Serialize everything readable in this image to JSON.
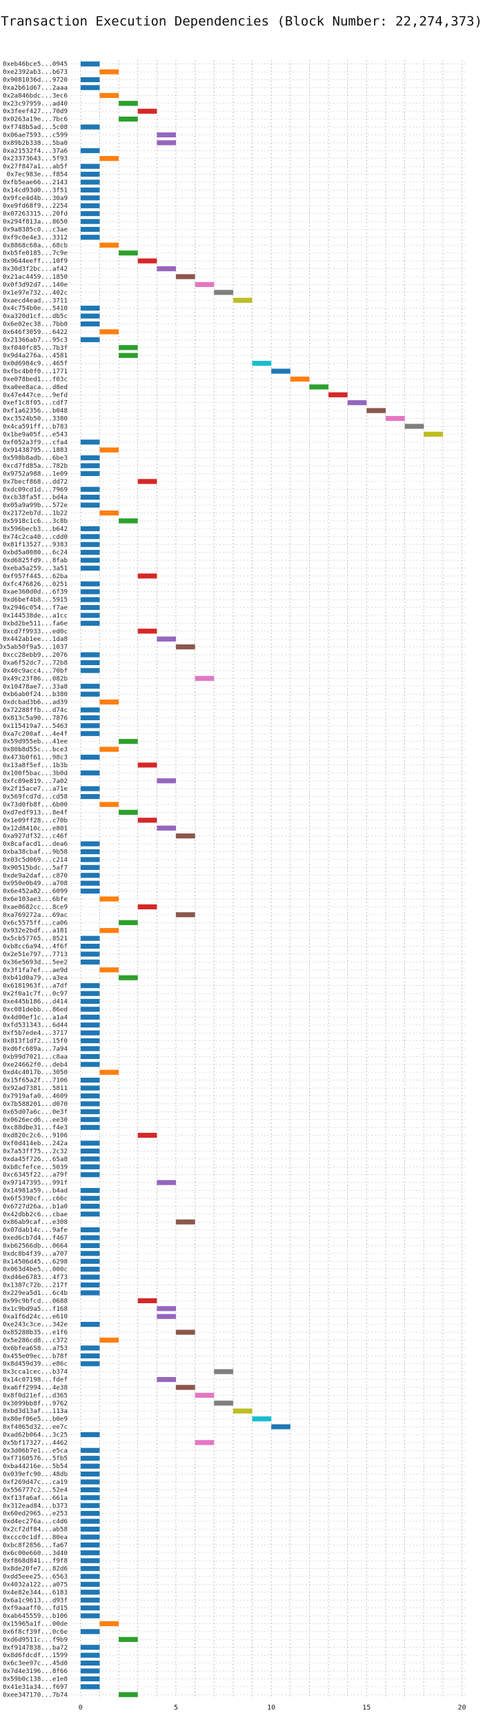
{
  "title": "Transaction Execution Dependencies (Block Number: 22,274,373)",
  "chart_data": {
    "type": "gantt",
    "title": "Transaction Execution Dependencies (Block Number: 22,274,373)",
    "xlim": [
      -0.5,
      20.2
    ],
    "xticks": [
      0,
      5,
      10,
      15,
      20
    ],
    "grid": true,
    "palette": [
      "#1f77b4",
      "#ff7f0e",
      "#2ca02c",
      "#d62728",
      "#9467bd",
      "#8c564b",
      "#e377c2",
      "#7f7f7f",
      "#bcbd22",
      "#17becf"
    ],
    "tasks": [
      {
        "label": "0xeb46bce5...0945",
        "start": 0
      },
      {
        "label": "0xe2392ab3...b673",
        "start": 1
      },
      {
        "label": "0x9081036d...9720",
        "start": 0
      },
      {
        "label": "0xa2b61d67...2aaa",
        "start": 0
      },
      {
        "label": "0x2a846bdc...3ec6",
        "start": 1
      },
      {
        "label": "0x23c97959...ad40",
        "start": 2
      },
      {
        "label": "0x3feef427...70d9",
        "start": 3
      },
      {
        "label": "0x0263a19e...7bc6",
        "start": 2
      },
      {
        "label": "0xf748b5ad...5c08",
        "start": 0
      },
      {
        "label": "0x06ae7593...c599",
        "start": 4
      },
      {
        "label": "0x89b2b338...5ba0",
        "start": 4
      },
      {
        "label": "0xa21532f4...37a6",
        "start": 0
      },
      {
        "label": "0x23373643...5f93",
        "start": 1
      },
      {
        "label": "0x27f847a1...ab5f",
        "start": 0
      },
      {
        "label": "0x7ec983e...f854",
        "start": 0
      },
      {
        "label": "0xfb5eae66...2143",
        "start": 0
      },
      {
        "label": "0x14cd93d0...3f51",
        "start": 0
      },
      {
        "label": "0x9fce4d4b...30a9",
        "start": 0
      },
      {
        "label": "0xe9fd68f9...2254",
        "start": 0
      },
      {
        "label": "0x07263315...20fd",
        "start": 0
      },
      {
        "label": "0x294f813a...8650",
        "start": 0
      },
      {
        "label": "0x9a8385c0...c3ae",
        "start": 0
      },
      {
        "label": "0xf9c0e4e3...3312",
        "start": 0
      },
      {
        "label": "0x8868c68a...68cb",
        "start": 1
      },
      {
        "label": "0xb5fe0185...7c9e",
        "start": 2
      },
      {
        "label": "0x9644eeff...10f9",
        "start": 3
      },
      {
        "label": "0x30d3f2bc...af42",
        "start": 4
      },
      {
        "label": "0x21ac4459...1850",
        "start": 5
      },
      {
        "label": "0x0f3d92d7...140e",
        "start": 6
      },
      {
        "label": "0x1e97e732...402c",
        "start": 7
      },
      {
        "label": "0xaecd4ead...3711",
        "start": 8
      },
      {
        "label": "0x4c754b0e...5410",
        "start": 0
      },
      {
        "label": "0xa320d1cf...db5c",
        "start": 0
      },
      {
        "label": "0x6e02ec38...7bb0",
        "start": 0
      },
      {
        "label": "0x646f3059...6422",
        "start": 1
      },
      {
        "label": "0x21366ab7...95c3",
        "start": 0
      },
      {
        "label": "0xf040fc85...7b3f",
        "start": 2
      },
      {
        "label": "0x9d4a276a...4581",
        "start": 2
      },
      {
        "label": "0x0d6984c9...465f",
        "start": 9
      },
      {
        "label": "0xfbc4b0f0...1771",
        "start": 10
      },
      {
        "label": "0xe078bed1...f03c",
        "start": 11
      },
      {
        "label": "0xa0ee8aca...d8ed",
        "start": 12
      },
      {
        "label": "0x47e447ce...9efd",
        "start": 13
      },
      {
        "label": "0xef1c8f05...cdf7",
        "start": 14
      },
      {
        "label": "0xf1a62356...b048",
        "start": 15
      },
      {
        "label": "0xc3524b50...3380",
        "start": 16
      },
      {
        "label": "0x4ca591ff...b783",
        "start": 17
      },
      {
        "label": "0x1be9a05f...e543",
        "start": 18
      },
      {
        "label": "0xf052a3f9...cfa4",
        "start": 0
      },
      {
        "label": "0x91438795...1883",
        "start": 1
      },
      {
        "label": "0x598b8adb...6be3",
        "start": 0
      },
      {
        "label": "0xcd7fd85a...782b",
        "start": 0
      },
      {
        "label": "0x9752a988...1e09",
        "start": 0
      },
      {
        "label": "0x7becf868...dd72",
        "start": 3
      },
      {
        "label": "0xdc09cd1d...7969",
        "start": 0
      },
      {
        "label": "0xcb38fa5f...bd4a",
        "start": 0
      },
      {
        "label": "0x05a9a99b...572e",
        "start": 0
      },
      {
        "label": "0x2172eb7d...1b22",
        "start": 1
      },
      {
        "label": "0x5918c1c6...3c8b",
        "start": 2
      },
      {
        "label": "0x596becb3...b642",
        "start": 0
      },
      {
        "label": "0x74c2ca40...cdd0",
        "start": 0
      },
      {
        "label": "0x81f13527...9383",
        "start": 0
      },
      {
        "label": "0xbd5a0080...6c24",
        "start": 0
      },
      {
        "label": "0xd6825fd9...8fab",
        "start": 0
      },
      {
        "label": "0xeba5a259...3a51",
        "start": 0
      },
      {
        "label": "0xf957f445...62ba",
        "start": 3
      },
      {
        "label": "0xfc476826...0251",
        "start": 0
      },
      {
        "label": "0xae360d0d...6f39",
        "start": 0
      },
      {
        "label": "0xd6bef4b8...5915",
        "start": 0
      },
      {
        "label": "0x2946c054...f7ae",
        "start": 0
      },
      {
        "label": "0x144538de...a1cc",
        "start": 0
      },
      {
        "label": "0xbd2be511...fa6e",
        "start": 0
      },
      {
        "label": "0xcd7f9933...ed0c",
        "start": 3
      },
      {
        "label": "0x442ab1ee...1da8",
        "start": 4
      },
      {
        "label": "0x5ab50f9a5...1037",
        "start": 5
      },
      {
        "label": "0xcc28ebb9...2076",
        "start": 0
      },
      {
        "label": "0xa6f52dc7...72b8",
        "start": 0
      },
      {
        "label": "0x40c9acc4...70bf",
        "start": 0
      },
      {
        "label": "0x49c23f86...082b",
        "start": 6
      },
      {
        "label": "0x10478ae7...33a8",
        "start": 0
      },
      {
        "label": "0xb6ab0f24...b380",
        "start": 0
      },
      {
        "label": "0xdcbad3b6...ad39",
        "start": 1
      },
      {
        "label": "0x72288ffb...d74c",
        "start": 0
      },
      {
        "label": "0x813c5a90...7876",
        "start": 0
      },
      {
        "label": "0x115419a7...5463",
        "start": 0
      },
      {
        "label": "0xa7c200af...4e4f",
        "start": 0
      },
      {
        "label": "0x59d955eb...41ee",
        "start": 2
      },
      {
        "label": "0x80b8d55c...bce3",
        "start": 1
      },
      {
        "label": "0x473b0f61...98c3",
        "start": 0
      },
      {
        "label": "0x13a8f5ef...1b3b",
        "start": 3
      },
      {
        "label": "0x100f5bac...3b0d",
        "start": 0
      },
      {
        "label": "0xfc89e819...7a02",
        "start": 4
      },
      {
        "label": "0x2f15ace7...a71e",
        "start": 0
      },
      {
        "label": "0x569fcd7d...cd58",
        "start": 0
      },
      {
        "label": "0x73d0fb8f...6b00",
        "start": 1
      },
      {
        "label": "0xd7edf913...8e4f",
        "start": 2
      },
      {
        "label": "0x1e09ff28...c70b",
        "start": 3
      },
      {
        "label": "0x12d8410c...e801",
        "start": 4
      },
      {
        "label": "0xa927df32...c46f",
        "start": 5
      },
      {
        "label": "0x8cafacd1...dea6",
        "start": 0
      },
      {
        "label": "0xba38cbaf...9b58",
        "start": 0
      },
      {
        "label": "0x03c5d069...c214",
        "start": 0
      },
      {
        "label": "0x90515bdc...5af7",
        "start": 0
      },
      {
        "label": "0xde9a2daf...c870",
        "start": 0
      },
      {
        "label": "0x950e0b49...a708",
        "start": 0
      },
      {
        "label": "0x6e452a82...6099",
        "start": 0
      },
      {
        "label": "0x6e103ae3...6bfe",
        "start": 1
      },
      {
        "label": "0xae0682cc...8ce9",
        "start": 3
      },
      {
        "label": "0xa769272a...69ac",
        "start": 5
      },
      {
        "label": "0x6c5575ff...ca06",
        "start": 2
      },
      {
        "label": "0x932e2bdf...a181",
        "start": 1
      },
      {
        "label": "0x5cb57765...8521",
        "start": 0
      },
      {
        "label": "0xb8cc6a94...4f6f",
        "start": 0
      },
      {
        "label": "0x2e51e797...7713",
        "start": 0
      },
      {
        "label": "0x36e5693d...5ee2",
        "start": 0
      },
      {
        "label": "0x3f1fa7ef...ae9d",
        "start": 1
      },
      {
        "label": "0xb41d0a79...a3ea",
        "start": 2
      },
      {
        "label": "0x6181963f...a7df",
        "start": 0
      },
      {
        "label": "0x2f0a1c7f...0c97",
        "start": 0
      },
      {
        "label": "0xe445b186...d414",
        "start": 0
      },
      {
        "label": "0xc081debb...86ed",
        "start": 0
      },
      {
        "label": "0x4d00ef1c...a1a4",
        "start": 0
      },
      {
        "label": "0xfd531343...6d44",
        "start": 0
      },
      {
        "label": "0xf5b7ede4...3717",
        "start": 0
      },
      {
        "label": "0x813f1df2...15f0",
        "start": 0
      },
      {
        "label": "0xd6fc689a...7a94",
        "start": 0
      },
      {
        "label": "0xb99d7021...c8aa",
        "start": 0
      },
      {
        "label": "0xe24662f0...deb4",
        "start": 0
      },
      {
        "label": "0xd4c4017b...3050",
        "start": 1
      },
      {
        "label": "0x15f65a2f...7106",
        "start": 0
      },
      {
        "label": "0x92ad7381...5811",
        "start": 0
      },
      {
        "label": "0x7919afa0...4609",
        "start": 0
      },
      {
        "label": "0x7b588201...d070",
        "start": 0
      },
      {
        "label": "0x65d07a6c...0e3f",
        "start": 0
      },
      {
        "label": "0x0626ecd6...ee30",
        "start": 0
      },
      {
        "label": "0xc88dbe31...f4e3",
        "start": 0
      },
      {
        "label": "0xd820c2c6...9106",
        "start": 3
      },
      {
        "label": "0xf0d414eb...242a",
        "start": 0
      },
      {
        "label": "0x7a53ff75...2c32",
        "start": 0
      },
      {
        "label": "0xda45f726...65a8",
        "start": 0
      },
      {
        "label": "0xb8cfefce...5039",
        "start": 0
      },
      {
        "label": "0xc6345f22...a79f",
        "start": 0
      },
      {
        "label": "0x97147395...991f",
        "start": 4
      },
      {
        "label": "0x14981a59...b4ad",
        "start": 0
      },
      {
        "label": "0x6f5390cf...c66c",
        "start": 0
      },
      {
        "label": "0x6727d26a...b1a0",
        "start": 0
      },
      {
        "label": "0x42dbb2c6...cbae",
        "start": 0
      },
      {
        "label": "0x86ab9caf...e308",
        "start": 5
      },
      {
        "label": "0x07dab14c...9afe",
        "start": 0
      },
      {
        "label": "0xed6cb7d4...f467",
        "start": 0
      },
      {
        "label": "0xb62566db...0664",
        "start": 0
      },
      {
        "label": "0xdc8b4f39...a707",
        "start": 0
      },
      {
        "label": "0x14506d45...6298",
        "start": 0
      },
      {
        "label": "0x063d4be5...000c",
        "start": 0
      },
      {
        "label": "0xd46e6783...4f73",
        "start": 0
      },
      {
        "label": "0x1387c72b...217f",
        "start": 0
      },
      {
        "label": "0x229ea5d1...6c4b",
        "start": 0
      },
      {
        "label": "0x99c9bfcd...0688",
        "start": 3
      },
      {
        "label": "0x1c9bd9a5...f168",
        "start": 4
      },
      {
        "label": "0xa1f6d24c...e610",
        "start": 4
      },
      {
        "label": "0xe243c3ce...342e",
        "start": 0
      },
      {
        "label": "0x85288b35...e1f6",
        "start": 5
      },
      {
        "label": "0x5e286cd8...c372",
        "start": 1
      },
      {
        "label": "0x6bfea658...a753",
        "start": 0
      },
      {
        "label": "0x455e09ec...b78f",
        "start": 0
      },
      {
        "label": "0x8d459d39...e86c",
        "start": 0
      },
      {
        "label": "0x3cca1cec...b374",
        "start": 7
      },
      {
        "label": "0x14c07198...fdef",
        "start": 4
      },
      {
        "label": "0xa6ff2994...4e38",
        "start": 5
      },
      {
        "label": "0x8f0d21ef...d365",
        "start": 6
      },
      {
        "label": "0x3099bb8f...9762",
        "start": 7
      },
      {
        "label": "0xbd3d13af...113a",
        "start": 8
      },
      {
        "label": "0x80ef06e5...b0e9",
        "start": 9
      },
      {
        "label": "0xf4065d32...ee7c",
        "start": 10
      },
      {
        "label": "0xad62b064...3c25",
        "start": 0
      },
      {
        "label": "0x5bf17327...4462",
        "start": 6
      },
      {
        "label": "0x3d06b7e1...e5ca",
        "start": 0
      },
      {
        "label": "0xf7160576...5fb5",
        "start": 0
      },
      {
        "label": "0xba44216e...5b54",
        "start": 0
      },
      {
        "label": "0x039efc90...48db",
        "start": 0
      },
      {
        "label": "0xf269d47c...ca19",
        "start": 0
      },
      {
        "label": "0x556777c2...52e4",
        "start": 0
      },
      {
        "label": "0xf13fa6af...661a",
        "start": 0
      },
      {
        "label": "0x312ead84...b373",
        "start": 0
      },
      {
        "label": "0x60ed2965...e253",
        "start": 0
      },
      {
        "label": "0xd4ec276a...c4d6",
        "start": 0
      },
      {
        "label": "0x2cf2df84...ab58",
        "start": 0
      },
      {
        "label": "0xccc0c1df...80ea",
        "start": 0
      },
      {
        "label": "0xbc8f2856...fa67",
        "start": 0
      },
      {
        "label": "0x6c00e660...3d40",
        "start": 0
      },
      {
        "label": "0xf868d841...f9f8",
        "start": 0
      },
      {
        "label": "0x8de20fe7...82d6",
        "start": 0
      },
      {
        "label": "0xdd5eee25...6563",
        "start": 0
      },
      {
        "label": "0x4032a122...a075",
        "start": 0
      },
      {
        "label": "0x4e82e344...6183",
        "start": 0
      },
      {
        "label": "0x6a1c9613...d93f",
        "start": 0
      },
      {
        "label": "0xf9aaaff0...fd15",
        "start": 0
      },
      {
        "label": "0xab645559...b106",
        "start": 0
      },
      {
        "label": "0x15965a1f...00de",
        "start": 1
      },
      {
        "label": "0x6f8cf39f...0c6e",
        "start": 0
      },
      {
        "label": "0xd6d9511c...f9b9",
        "start": 2
      },
      {
        "label": "0xf9147838...ba72",
        "start": 0
      },
      {
        "label": "0x8d6fdcdf...1599",
        "start": 0
      },
      {
        "label": "0x6c3ee97c...45d0",
        "start": 0
      },
      {
        "label": "0x7d4e3196...8f66",
        "start": 0
      },
      {
        "label": "0x59b0c138...e1e8",
        "start": 0
      },
      {
        "label": "0x41e31a34...f697",
        "start": 0
      },
      {
        "label": "0xee347170...7b74",
        "start": 2
      }
    ]
  }
}
